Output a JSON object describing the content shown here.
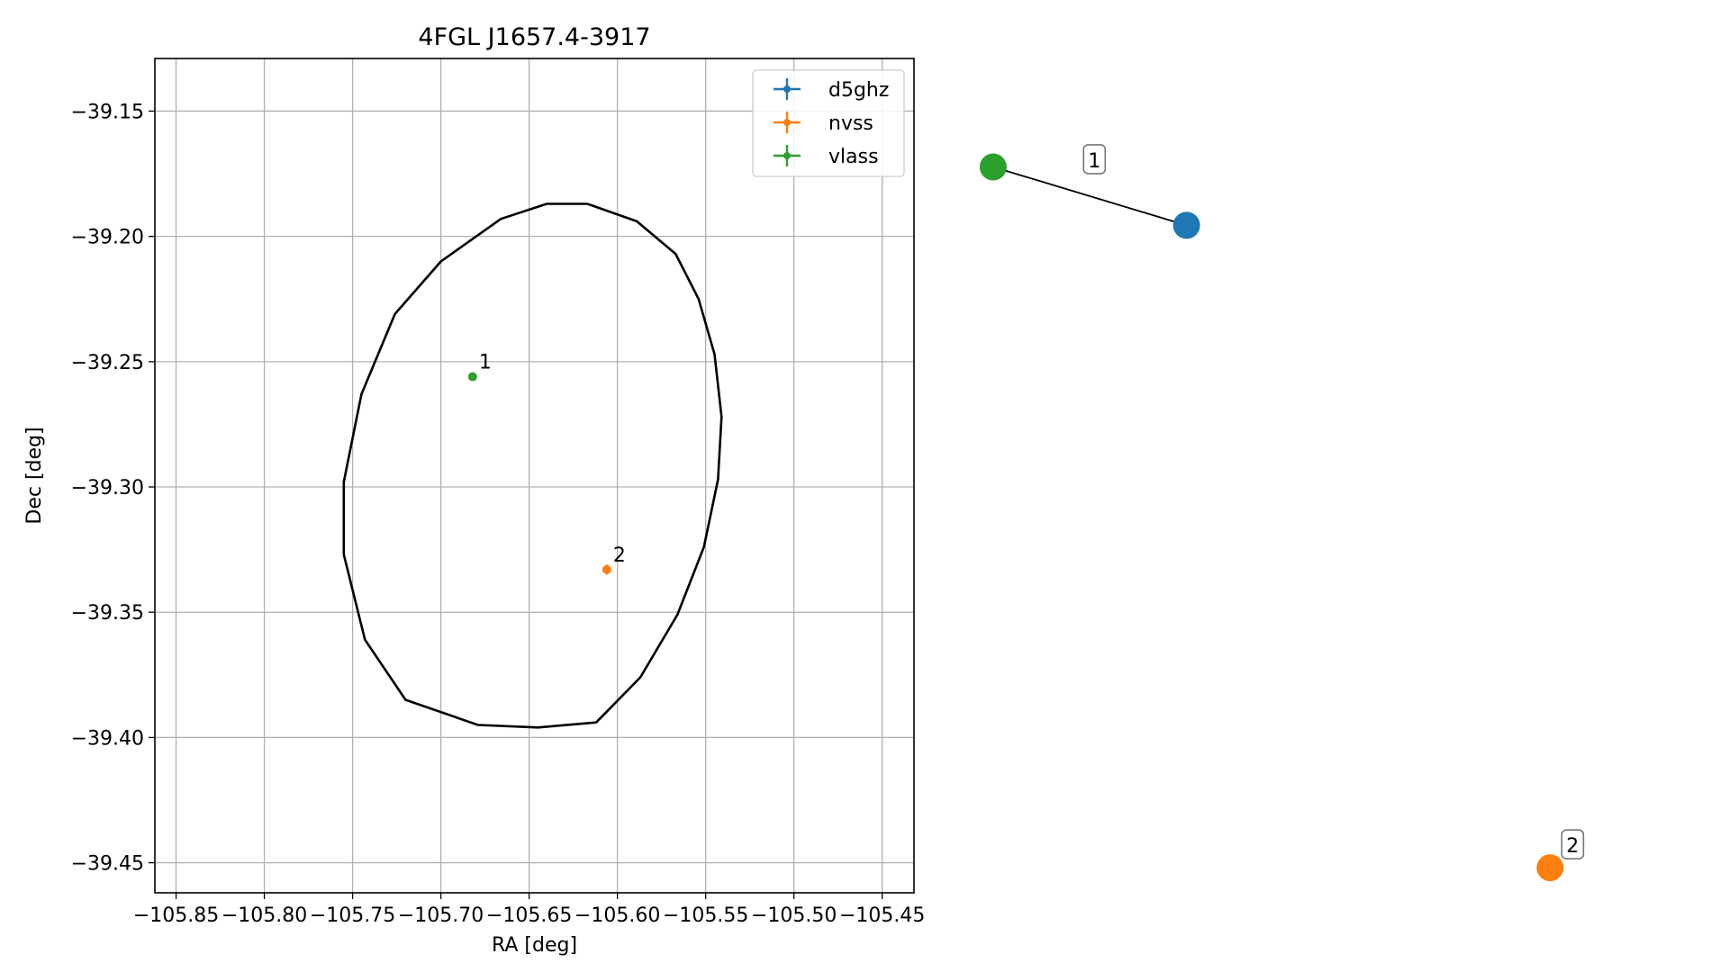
{
  "chart_data": [
    {
      "type": "scatter",
      "title": "4FGL J1657.4-3917",
      "xlabel": "RA [deg]",
      "ylabel": "Dec [deg]",
      "xlim": [
        -105.862,
        -105.432
      ],
      "ylim": [
        -39.462,
        -39.129
      ],
      "grid": true,
      "x_ticks": [
        -105.85,
        -105.8,
        -105.75,
        -105.7,
        -105.65,
        -105.6,
        -105.55,
        -105.5,
        -105.45
      ],
      "x_tick_labels": [
        "−105.85",
        "−105.80",
        "−105.75",
        "−105.70",
        "−105.65",
        "−105.60",
        "−105.55",
        "−105.50",
        "−105.45"
      ],
      "y_ticks": [
        -39.15,
        -39.2,
        -39.25,
        -39.3,
        -39.35,
        -39.4,
        -39.45
      ],
      "y_tick_labels": [
        "−39.15",
        "−39.20",
        "−39.25",
        "−39.30",
        "−39.35",
        "−39.40",
        "−39.45"
      ],
      "legend": {
        "placement": "top-right",
        "entries": [
          {
            "label": "d5ghz",
            "color": "#1f77b4"
          },
          {
            "label": "nvss",
            "color": "#ff7f0e"
          },
          {
            "label": "vlass",
            "color": "#2ca02c"
          }
        ]
      },
      "series": [
        {
          "name": "d5ghz",
          "color": "#1f77b4",
          "points": []
        },
        {
          "name": "nvss",
          "color": "#ff7f0e",
          "points": [
            {
              "x": -105.606,
              "y": -39.333,
              "yerr": 0.002,
              "label": "2"
            }
          ]
        },
        {
          "name": "vlass",
          "color": "#2ca02c",
          "points": [
            {
              "x": -105.682,
              "y": -39.256,
              "label": "1"
            }
          ]
        }
      ],
      "ellipse": {
        "color": "#000000",
        "points": [
          [
            -105.617,
            -39.187
          ],
          [
            -105.589,
            -39.194
          ],
          [
            -105.567,
            -39.207
          ],
          [
            -105.554,
            -39.225
          ],
          [
            -105.545,
            -39.247
          ],
          [
            -105.541,
            -39.272
          ],
          [
            -105.543,
            -39.297
          ],
          [
            -105.551,
            -39.324
          ],
          [
            -105.566,
            -39.351
          ],
          [
            -105.587,
            -39.376
          ],
          [
            -105.612,
            -39.394
          ],
          [
            -105.645,
            -39.396
          ],
          [
            -105.679,
            -39.395
          ],
          [
            -105.72,
            -39.385
          ],
          [
            -105.743,
            -39.361
          ],
          [
            -105.755,
            -39.327
          ],
          [
            -105.755,
            -39.298
          ],
          [
            -105.745,
            -39.263
          ],
          [
            -105.726,
            -39.231
          ],
          [
            -105.7,
            -39.21
          ],
          [
            -105.666,
            -39.193
          ],
          [
            -105.64,
            -39.187
          ],
          [
            -105.617,
            -39.187
          ]
        ]
      }
    },
    {
      "type": "graph",
      "nodes": [
        {
          "id": "vlass",
          "color": "#2ca02c",
          "x": 0.05,
          "y": 0.87
        },
        {
          "id": "d5ghz",
          "color": "#1f77b4",
          "x": 0.3,
          "y": 0.8
        },
        {
          "id": "nvss",
          "color": "#ff7f0e",
          "x": 0.77,
          "y": 0.03
        }
      ],
      "edges": [
        {
          "source": "vlass",
          "target": "d5ghz",
          "label": "1"
        }
      ],
      "node_labels": [
        {
          "node": "nvss",
          "label": "2"
        }
      ]
    }
  ]
}
